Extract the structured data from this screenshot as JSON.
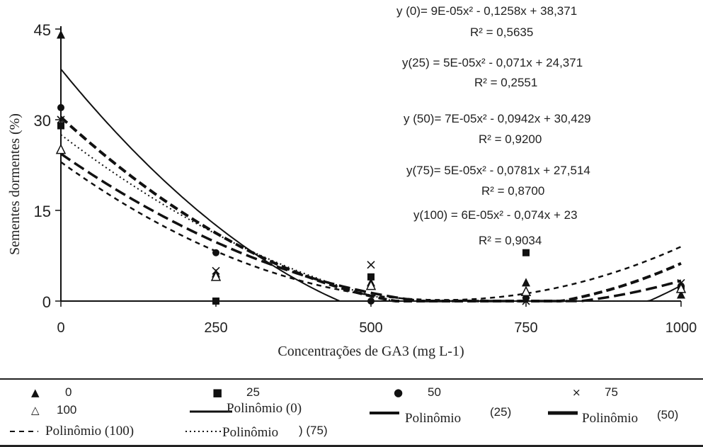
{
  "chart_data": {
    "type": "scatter",
    "xlabel": "Concentrações de GA3 (mg L-1)",
    "ylabel": "Sementes dormentes (%)",
    "xlim": [
      0,
      1000
    ],
    "ylim": [
      0,
      45
    ],
    "xticks": [
      "0",
      "250",
      "500",
      "750",
      "1000"
    ],
    "yticks": [
      "0",
      "15",
      "30",
      "45"
    ],
    "grid": false,
    "legend_position": "bottom",
    "x": [
      0,
      250,
      500,
      750,
      1000
    ],
    "series": [
      {
        "name": "0",
        "marker": "filled-triangle",
        "values": [
          44,
          4.5,
          3,
          3,
          1
        ]
      },
      {
        "name": "25",
        "marker": "filled-square",
        "values": [
          29,
          0,
          4,
          8,
          2
        ]
      },
      {
        "name": "50",
        "marker": "filled-circle",
        "values": [
          32,
          8,
          0,
          0.5,
          2.5
        ]
      },
      {
        "name": "75",
        "marker": "x",
        "values": [
          30,
          5,
          6,
          0,
          3
        ]
      },
      {
        "name": "100",
        "marker": "open-triangle",
        "values": [
          25,
          4,
          2.5,
          1.5,
          2
        ]
      }
    ],
    "trendlines": [
      {
        "name": "Polinômio  (0)",
        "for_series": "0",
        "style": "solid",
        "equation": "y (0)= 9E-05x² - 0,1258x + 38,371",
        "r2": "R² = 0,5635",
        "a": 9e-05,
        "b": -0.1258,
        "c": 38.371
      },
      {
        "name": "Polinômio  (25)",
        "for_series": "25",
        "style": "long-dash",
        "equation": "y(25) = 5E-05x² - 0,071x + 24,371",
        "r2": "R² = 0,2551",
        "a": 5e-05,
        "b": -0.071,
        "c": 24.371
      },
      {
        "name": "Polinômio  (50)",
        "for_series": "50",
        "style": "long-dash-bold",
        "equation": "y (50)= 7E-05x² - 0,0942x + 30,429",
        "r2": "R² = 0,9200",
        "a": 7e-05,
        "b": -0.0942,
        "c": 30.429
      },
      {
        "name": "Polinômio  (75)",
        "for_series": "75",
        "style": "dotted",
        "equation": "y(75)= 5E-05x² - 0,0781x + 27,514",
        "r2": "R² = 0,8700",
        "a": 5e-05,
        "b": -0.0781,
        "c": 27.514
      },
      {
        "name": "Polinômio  (100)",
        "for_series": "100",
        "style": "dashed",
        "equation": "y(100) = 6E-05x² - 0,074x + 23",
        "r2": "R² = 0,9034",
        "a": 6e-05,
        "b": -0.074,
        "c": 23
      }
    ]
  },
  "legend": {
    "marker_labels": [
      "0",
      "25",
      "50",
      "75",
      "100"
    ],
    "line_labels": [
      "Polinômio  (0)",
      "Polinômio",
      "(25)",
      "Polinômio",
      "(50)",
      "Polinômio  (100)",
      "Polinômio",
      ") (75)"
    ],
    "symbols": {
      "filled_triangle": "▲",
      "filled_square": "■",
      "filled_circle": "●",
      "x_mark": "×",
      "open_triangle": "△"
    }
  },
  "colors": {
    "ink": "#111111",
    "background": "#ffffff"
  }
}
